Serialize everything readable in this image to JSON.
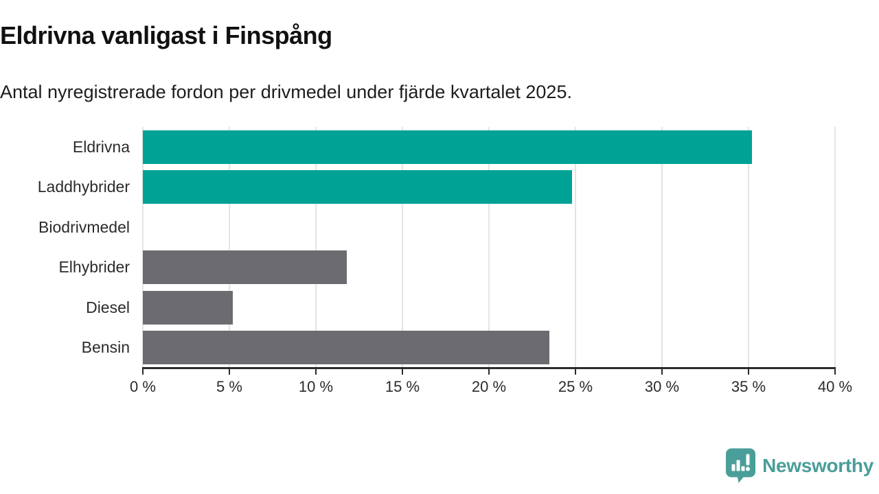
{
  "header": {
    "title": "Eldrivna vanligast i Finspång",
    "subtitle": "Antal nyregistrerade fordon per drivmedel under fjärde kvartalet 2025."
  },
  "chart_data": {
    "type": "bar",
    "orientation": "horizontal",
    "title": "Eldrivna vanligast i Finspång",
    "subtitle": "Antal nyregistrerade fordon per drivmedel under fjärde kvartalet 2025.",
    "categories": [
      "Eldrivna",
      "Laddhybrider",
      "Biodrivmedel",
      "Elhybrider",
      "Diesel",
      "Bensin"
    ],
    "values": [
      35.2,
      24.8,
      0,
      11.8,
      5.2,
      23.5
    ],
    "unit": "%",
    "bar_colors": [
      "#00A296",
      "#00A296",
      "#6C6B70",
      "#6C6B70",
      "#6C6B70",
      "#6C6B70"
    ],
    "highlight_color": "#00A296",
    "default_color": "#6C6B70",
    "xlim": [
      0,
      40
    ],
    "x_ticks": [
      0,
      5,
      10,
      15,
      20,
      25,
      30,
      35,
      40
    ],
    "x_tick_labels": [
      "0 %",
      "5 %",
      "10 %",
      "15 %",
      "20 %",
      "25 %",
      "30 %",
      "35 %",
      "40 %"
    ],
    "grid": "vertical",
    "gridline_color": "#e4e4e4",
    "axis_color": "#2b2b2b",
    "legend": "none"
  },
  "branding": {
    "name": "Newsworthy",
    "color": "#4A9E99",
    "icon": "newsworthy-speech-bubble-bar-chart-icon"
  }
}
